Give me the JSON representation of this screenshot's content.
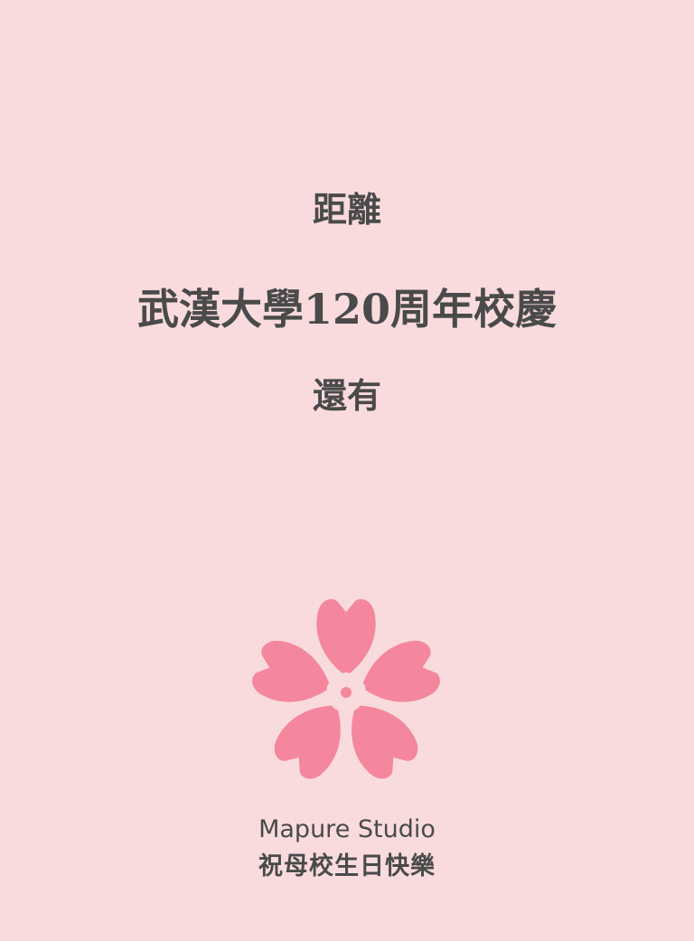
{
  "countdown": {
    "prefix": "距離",
    "event": "武漢大學120周年校慶",
    "suffix": "還有"
  },
  "emblem": {
    "icon": "cherry-blossom-icon",
    "petal_color": "#f4879d",
    "center_color": "#fadbdd"
  },
  "footer": {
    "studio": "Mapure Studio",
    "greeting": "祝母校生日快樂"
  },
  "colors": {
    "background": "#fadbdd",
    "text": "#4a4a4a"
  }
}
